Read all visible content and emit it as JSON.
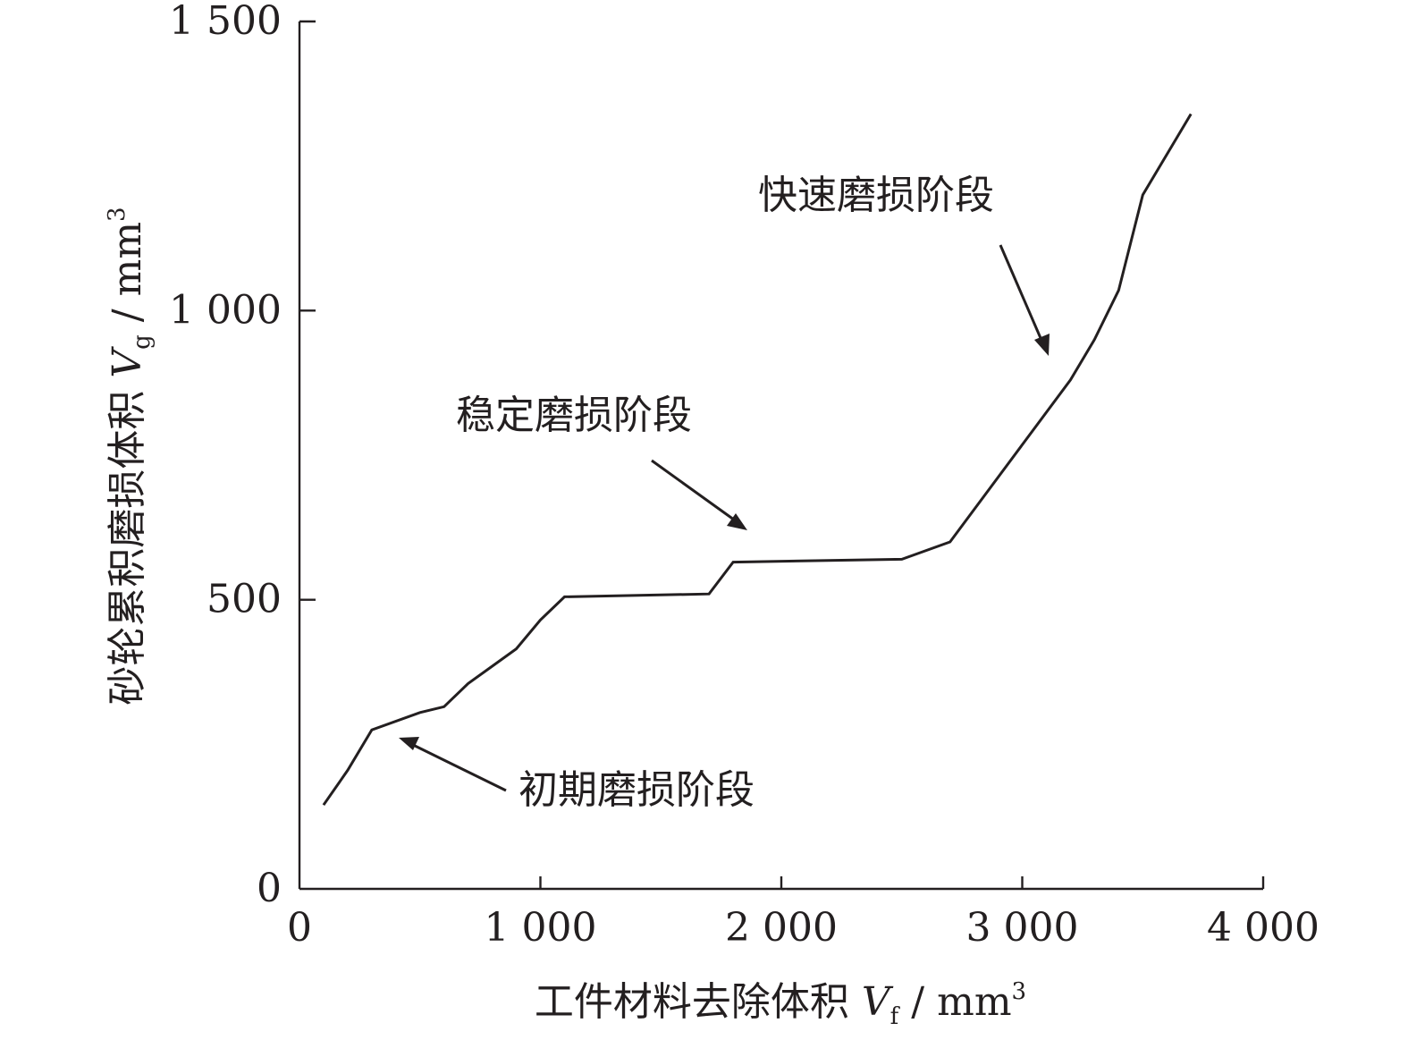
{
  "chart_data": {
    "type": "line",
    "x": [
      100,
      200,
      300,
      500,
      600,
      700,
      800,
      900,
      1000,
      1100,
      1700,
      1800,
      2500,
      2700,
      3200,
      3300,
      3400,
      3500,
      3700
    ],
    "series": [
      {
        "values": [
          145,
          205,
          275,
          305,
          315,
          355,
          385,
          415,
          465,
          505,
          510,
          565,
          570,
          600,
          880,
          950,
          1035,
          1200,
          1340
        ]
      }
    ],
    "xlim": [
      0,
      4000
    ],
    "ylim": [
      0,
      1500
    ],
    "xticks": [
      "0",
      "1 000",
      "2 000",
      "3 000",
      "4 000"
    ],
    "yticks": [
      "0",
      "500",
      "1 000",
      "1 500"
    ],
    "xlabel": {
      "main": "工件材料去除体积 ",
      "var": "V",
      "sub": "f",
      "unit": " / mm",
      "sup": "3"
    },
    "ylabel": {
      "main": "砂轮累积磨损体积 ",
      "var": "V",
      "sub": "g",
      "unit": " / mm",
      "sup": "3"
    },
    "annotations": [
      {
        "text": "初期磨损阶段",
        "target": [
          400,
          260
        ]
      },
      {
        "text": "稳定磨损阶段",
        "target": [
          1860,
          625
        ]
      },
      {
        "text": "快速磨损阶段",
        "target": [
          3115,
          920
        ]
      }
    ],
    "grid": false,
    "legend": "none"
  }
}
